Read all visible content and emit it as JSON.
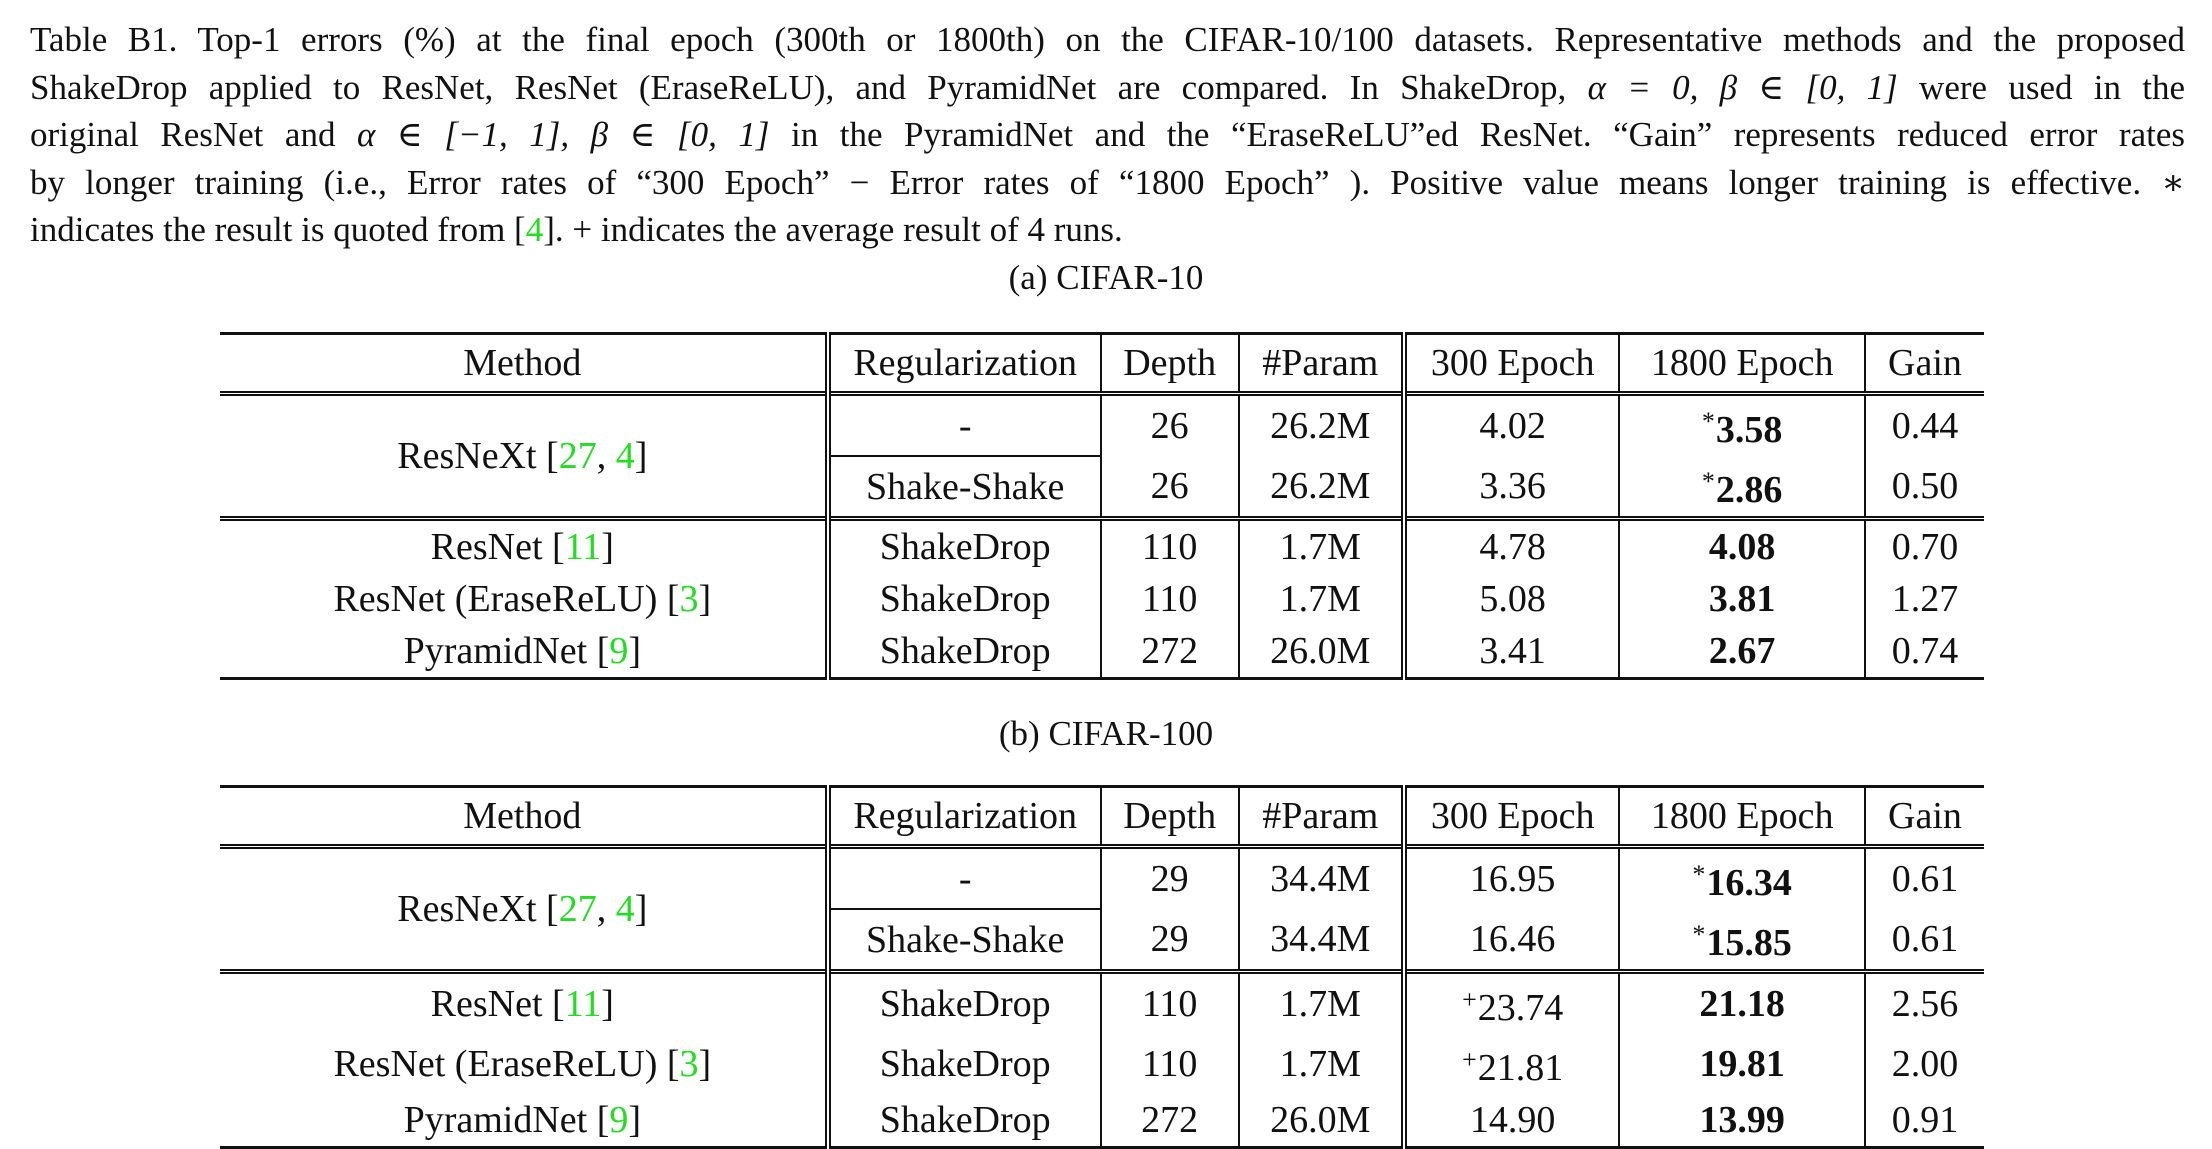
{
  "caption": {
    "lines": [
      [
        "Table B1. Top-1 errors (%) at the final epoch (300th or 1800th) on the CIFAR-10/100 datasets. Representative methods and the proposed"
      ],
      [
        "ShakeDrop applied to ResNet, ResNet (EraseReLU), and PyramidNet are compared. In ShakeDrop, ",
        "α = 0, β ∈ [0, 1]",
        " were used in the"
      ],
      [
        "original ResNet and ",
        "α ∈ [−1, 1], β ∈ [0, 1]",
        " in the PyramidNet and the “EraseReLU”ed ResNet. “Gain” represents reduced error rates"
      ],
      [
        "by longer training (i.e., Error rates of “300 Epoch” − Error rates of “1800 Epoch” ). Positive value means longer training is effective. ∗"
      ],
      [
        "indicates the result is quoted from [",
        "4",
        "]. + indicates the average result of 4 runs."
      ]
    ]
  },
  "headers": [
    "Method",
    "Regularization",
    "Depth",
    "#Param",
    "300 Epoch",
    "1800 Epoch",
    "Gain"
  ],
  "tables": [
    {
      "subtitle": "(a) CIFAR-10",
      "resnext": {
        "name": "ResNeXt [",
        "cite1": "27",
        "sep": ", ",
        "cite2": "4",
        "close": "]"
      },
      "resnext_rows": [
        {
          "reg": "-",
          "depth": "26",
          "param": "26.2M",
          "e300_mark": "",
          "e300": "4.02",
          "e1800_mark": "*",
          "e1800": "3.58",
          "gain": "0.44"
        },
        {
          "reg": "Shake-Shake",
          "depth": "26",
          "param": "26.2M",
          "e300_mark": "",
          "e300": "3.36",
          "e1800_mark": "*",
          "e1800": "2.86",
          "gain": "0.50"
        }
      ],
      "rows": [
        {
          "method": "ResNet [",
          "cite": "11",
          "close": "]",
          "reg": "ShakeDrop",
          "depth": "110",
          "param": "1.7M",
          "e300_mark": "",
          "e300": "4.78",
          "e1800": "4.08",
          "gain": "0.70"
        },
        {
          "method": "ResNet (EraseReLU) [",
          "cite": "3",
          "close": "]",
          "reg": "ShakeDrop",
          "depth": "110",
          "param": "1.7M",
          "e300_mark": "",
          "e300": "5.08",
          "e1800": "3.81",
          "gain": "1.27"
        },
        {
          "method": "PyramidNet [",
          "cite": "9",
          "close": "]",
          "reg": "ShakeDrop",
          "depth": "272",
          "param": "26.0M",
          "e300_mark": "",
          "e300": "3.41",
          "e1800": "2.67",
          "gain": "0.74"
        }
      ]
    },
    {
      "subtitle": "(b) CIFAR-100",
      "resnext": {
        "name": "ResNeXt [",
        "cite1": "27",
        "sep": ", ",
        "cite2": "4",
        "close": "]"
      },
      "resnext_rows": [
        {
          "reg": "-",
          "depth": "29",
          "param": "34.4M",
          "e300_mark": "",
          "e300": "16.95",
          "e1800_mark": "*",
          "e1800": "16.34",
          "gain": "0.61"
        },
        {
          "reg": "Shake-Shake",
          "depth": "29",
          "param": "34.4M",
          "e300_mark": "",
          "e300": "16.46",
          "e1800_mark": "*",
          "e1800": "15.85",
          "gain": "0.61"
        }
      ],
      "rows": [
        {
          "method": "ResNet [",
          "cite": "11",
          "close": "]",
          "reg": "ShakeDrop",
          "depth": "110",
          "param": "1.7M",
          "e300_mark": "+",
          "e300": "23.74",
          "e1800": "21.18",
          "gain": "2.56"
        },
        {
          "method": "ResNet (EraseReLU) [",
          "cite": "3",
          "close": "]",
          "reg": "ShakeDrop",
          "depth": "110",
          "param": "1.7M",
          "e300_mark": "+",
          "e300": "21.81",
          "e1800": "19.81",
          "gain": "2.00"
        },
        {
          "method": "PyramidNet [",
          "cite": "9",
          "close": "]",
          "reg": "ShakeDrop",
          "depth": "272",
          "param": "26.0M",
          "e300_mark": "",
          "e300": "14.90",
          "e1800": "13.99",
          "gain": "0.91"
        }
      ]
    }
  ],
  "colors": {
    "citation": "#22dd22",
    "text": "#111111"
  }
}
